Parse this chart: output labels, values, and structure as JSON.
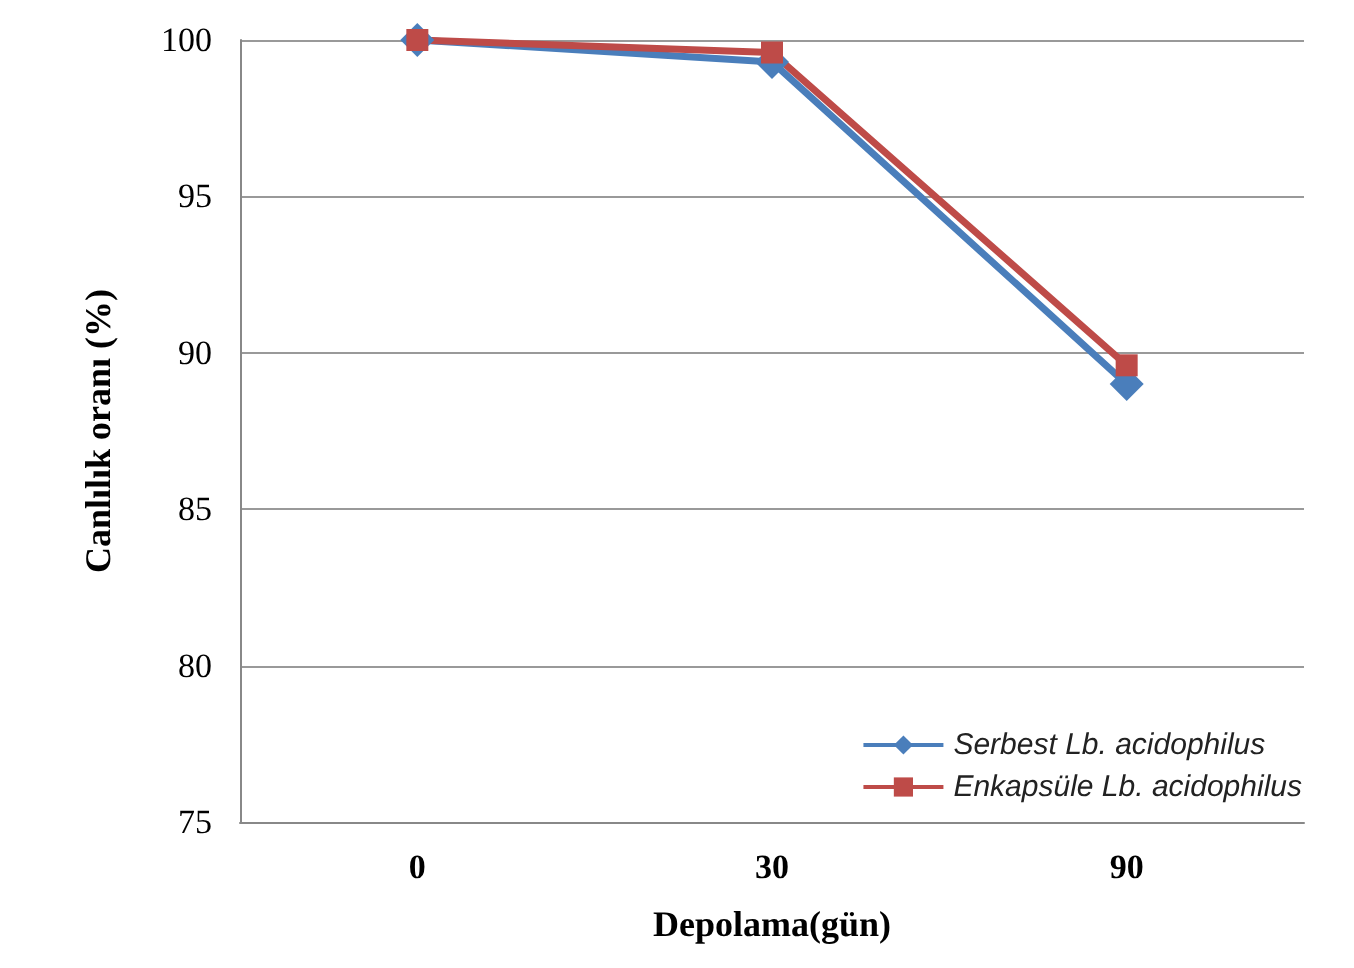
{
  "chart_data": {
    "type": "line",
    "xlabel": "Depolama(gün)",
    "ylabel": "Canlılık oranı (%)",
    "categories": [
      "0",
      "30",
      "90"
    ],
    "series": [
      {
        "name": "Serbest Lb. acidophilus",
        "color": "#4a7ebb",
        "values": [
          100,
          99.3,
          89.0
        ],
        "marker": "diamond"
      },
      {
        "name": "Enkapsüle Lb. acidophilus",
        "color": "#be4b48",
        "values": [
          100,
          99.6,
          89.6
        ],
        "marker": "square"
      }
    ],
    "ylim": [
      75,
      100
    ],
    "yticks": [
      75,
      80,
      85,
      90,
      95,
      100
    ],
    "grid": "y",
    "legend": "bottom right",
    "line_style": "solid"
  }
}
